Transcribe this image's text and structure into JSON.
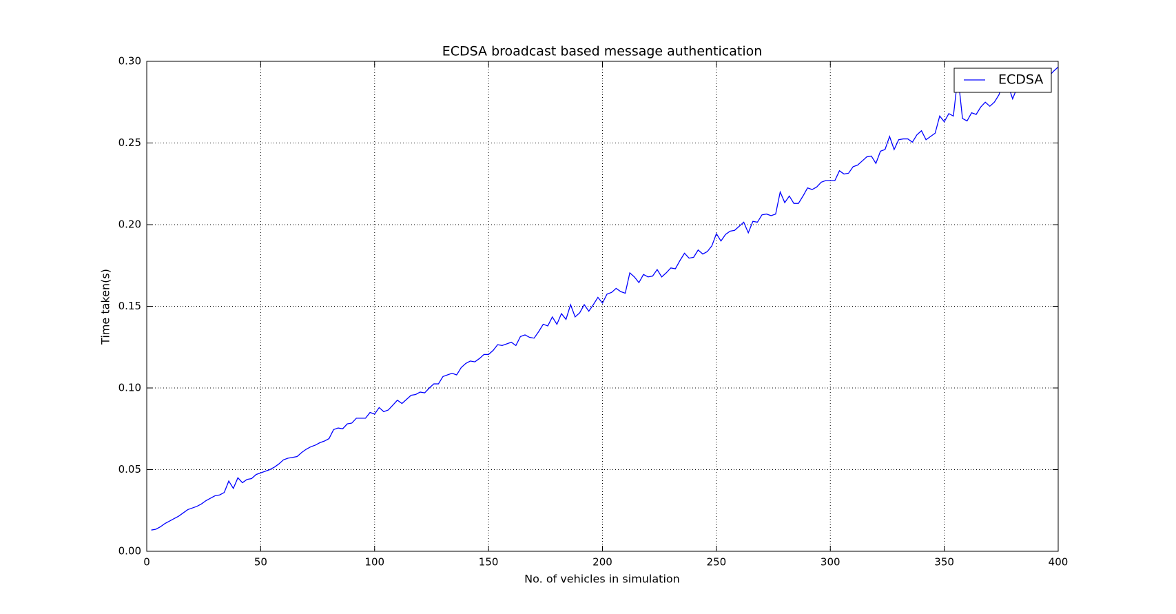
{
  "chart_data": {
    "type": "line",
    "title": "ECDSA broadcast based message authentication",
    "x_label": "No. of vehicles in simulation",
    "y_label": "Time taken(s)",
    "x": [
      2,
      4,
      6,
      8,
      10,
      12,
      14,
      16,
      18,
      20,
      22,
      24,
      26,
      28,
      30,
      32,
      34,
      36,
      38,
      40,
      42,
      44,
      46,
      48,
      50,
      52,
      54,
      56,
      58,
      60,
      62,
      64,
      66,
      68,
      70,
      72,
      74,
      76,
      78,
      80,
      82,
      84,
      86,
      88,
      90,
      92,
      94,
      96,
      98,
      100,
      102,
      104,
      106,
      108,
      110,
      112,
      114,
      116,
      118,
      120,
      122,
      124,
      126,
      128,
      130,
      132,
      134,
      136,
      138,
      140,
      142,
      144,
      146,
      148,
      150,
      152,
      154,
      156,
      158,
      160,
      162,
      164,
      166,
      168,
      170,
      172,
      174,
      176,
      178,
      180,
      182,
      184,
      186,
      188,
      190,
      192,
      194,
      196,
      198,
      200,
      202,
      204,
      206,
      208,
      210,
      212,
      214,
      216,
      218,
      220,
      222,
      224,
      226,
      228,
      230,
      232,
      234,
      236,
      238,
      240,
      242,
      244,
      246,
      248,
      250,
      252,
      254,
      256,
      258,
      260,
      262,
      264,
      266,
      268,
      270,
      272,
      274,
      276,
      278,
      280,
      282,
      284,
      286,
      288,
      290,
      292,
      294,
      296,
      298,
      300,
      302,
      304,
      306,
      308,
      310,
      312,
      314,
      316,
      318,
      320,
      322,
      324,
      326,
      328,
      330,
      332,
      334,
      336,
      338,
      340,
      342,
      344,
      346,
      348,
      350,
      352,
      354,
      356,
      358,
      360,
      362,
      364,
      366,
      368,
      370,
      372,
      374,
      376,
      378,
      380,
      382,
      384,
      386,
      388,
      390,
      392,
      394,
      396,
      398,
      400
    ],
    "series": [
      {
        "name": "ECDSA",
        "color": "#0000ff",
        "values": [
          0.013,
          0.0135,
          0.015,
          0.017,
          0.0185,
          0.02,
          0.0215,
          0.0235,
          0.0255,
          0.0265,
          0.0275,
          0.029,
          0.031,
          0.0325,
          0.034,
          0.0345,
          0.036,
          0.043,
          0.0385,
          0.045,
          0.042,
          0.044,
          0.0445,
          0.047,
          0.048,
          0.049,
          0.05,
          0.0515,
          0.0535,
          0.056,
          0.057,
          0.0575,
          0.058,
          0.0605,
          0.0625,
          0.064,
          0.065,
          0.0665,
          0.0675,
          0.069,
          0.0745,
          0.0755,
          0.075,
          0.078,
          0.0785,
          0.0815,
          0.0815,
          0.0815,
          0.085,
          0.084,
          0.088,
          0.0855,
          0.0865,
          0.0895,
          0.0925,
          0.0905,
          0.093,
          0.0955,
          0.096,
          0.0975,
          0.097,
          0.1,
          0.1025,
          0.1025,
          0.107,
          0.108,
          0.109,
          0.108,
          0.1125,
          0.115,
          0.1165,
          0.116,
          0.118,
          0.1205,
          0.1205,
          0.123,
          0.1265,
          0.126,
          0.127,
          0.128,
          0.126,
          0.1315,
          0.1325,
          0.131,
          0.1305,
          0.1345,
          0.139,
          0.138,
          0.1435,
          0.139,
          0.1455,
          0.142,
          0.151,
          0.1435,
          0.146,
          0.151,
          0.147,
          0.151,
          0.1555,
          0.152,
          0.1575,
          0.1585,
          0.161,
          0.159,
          0.158,
          0.1705,
          0.168,
          0.1645,
          0.1695,
          0.168,
          0.1685,
          0.1725,
          0.168,
          0.1705,
          0.1735,
          0.173,
          0.178,
          0.1825,
          0.1795,
          0.18,
          0.1845,
          0.182,
          0.1835,
          0.187,
          0.1945,
          0.19,
          0.194,
          0.196,
          0.1965,
          0.199,
          0.2015,
          0.195,
          0.202,
          0.2015,
          0.206,
          0.2065,
          0.2055,
          0.2065,
          0.22,
          0.2135,
          0.2175,
          0.213,
          0.213,
          0.2175,
          0.2225,
          0.2215,
          0.223,
          0.226,
          0.227,
          0.227,
          0.227,
          0.233,
          0.231,
          0.2315,
          0.2355,
          0.2365,
          0.239,
          0.2415,
          0.242,
          0.2375,
          0.245,
          0.246,
          0.254,
          0.246,
          0.252,
          0.2525,
          0.2525,
          0.2505,
          0.255,
          0.2575,
          0.252,
          0.254,
          0.256,
          0.2665,
          0.263,
          0.268,
          0.2665,
          0.291,
          0.265,
          0.2635,
          0.2685,
          0.2675,
          0.272,
          0.275,
          0.2725,
          0.275,
          0.2795,
          0.288,
          0.2855,
          0.277,
          0.284,
          0.285,
          0.285,
          0.286,
          0.287,
          0.288,
          0.289,
          0.291,
          0.294,
          0.2965
        ]
      }
    ],
    "xlim": [
      0,
      400
    ],
    "xticks": [
      0,
      50,
      100,
      150,
      200,
      250,
      300,
      350,
      400
    ],
    "ylim": [
      0,
      0.3
    ],
    "yticks": [
      {
        "value": 0,
        "label": "0.00"
      },
      {
        "value": 0.05,
        "label": "0.05"
      },
      {
        "value": 0.1,
        "label": "0.10"
      },
      {
        "value": 0.15,
        "label": "0.15"
      },
      {
        "value": 0.2,
        "label": "0.20"
      },
      {
        "value": 0.25,
        "label": "0.25"
      },
      {
        "value": 0.3,
        "label": "0.30"
      }
    ],
    "grid": true,
    "legend": "upper right"
  }
}
